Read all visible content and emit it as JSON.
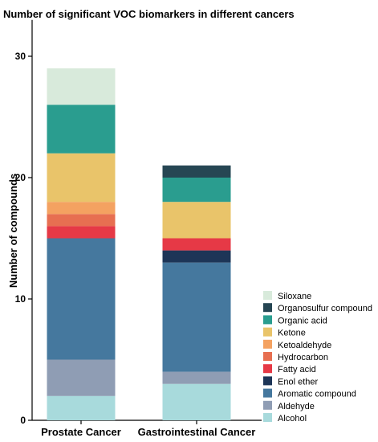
{
  "chart_data": {
    "type": "bar",
    "stacked": true,
    "title": "Number of significant VOC biomarkers in different cancers",
    "ylabel": "Number of compounds",
    "xlabel": "",
    "ylim": [
      0,
      33
    ],
    "yticks": [
      0,
      10,
      20,
      30
    ],
    "grid": false,
    "legend_position": "right",
    "categories": [
      "Prostate Cancer",
      "Gastrointestinal Cancer"
    ],
    "series": [
      {
        "name": "Alcohol",
        "color": "#a8dadc",
        "values": [
          2,
          3
        ]
      },
      {
        "name": "Aldehyde",
        "color": "#8f9db4",
        "values": [
          3,
          1
        ]
      },
      {
        "name": "Aromatic compound",
        "color": "#45789e",
        "values": [
          10,
          9
        ]
      },
      {
        "name": "Enol ether",
        "color": "#1d3557",
        "values": [
          0,
          1
        ]
      },
      {
        "name": "Fatty acid",
        "color": "#e63946",
        "values": [
          1,
          1
        ]
      },
      {
        "name": "Hydrocarbon",
        "color": "#e76f51",
        "values": [
          1,
          0
        ]
      },
      {
        "name": "Ketoaldehyde",
        "color": "#f4a261",
        "values": [
          1,
          0
        ]
      },
      {
        "name": "Ketone",
        "color": "#e9c46a",
        "values": [
          4,
          3
        ]
      },
      {
        "name": "Organic acid",
        "color": "#2a9d8f",
        "values": [
          4,
          2
        ]
      },
      {
        "name": "Organosulfur compound",
        "color": "#264653",
        "values": [
          0,
          1
        ]
      },
      {
        "name": "Siloxane",
        "color": "#d8eadb",
        "values": [
          3,
          0
        ]
      }
    ]
  }
}
